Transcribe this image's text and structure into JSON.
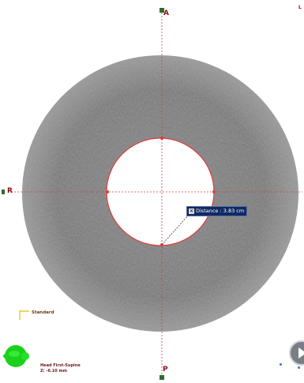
{
  "orientation": {
    "anterior": "A",
    "posterior": "P",
    "right": "R",
    "left": "L"
  },
  "measurement": {
    "close_symbol": "✕",
    "label": "Distance : 3.83 cm"
  },
  "scale": {
    "label": "Standard"
  },
  "info": {
    "line1": "Head First-Supine",
    "line2": "Z: -6.10 mm"
  },
  "colors": {
    "ring_outline": "#e03c3c",
    "crosshair": "#d23c3c",
    "marker": "#2f6b2f",
    "tag_bg": "#0f2a63",
    "indicator": "#1bd11b"
  },
  "icons": {
    "view_indicator": "green-view-indicator-icon",
    "play": "play-icon"
  }
}
